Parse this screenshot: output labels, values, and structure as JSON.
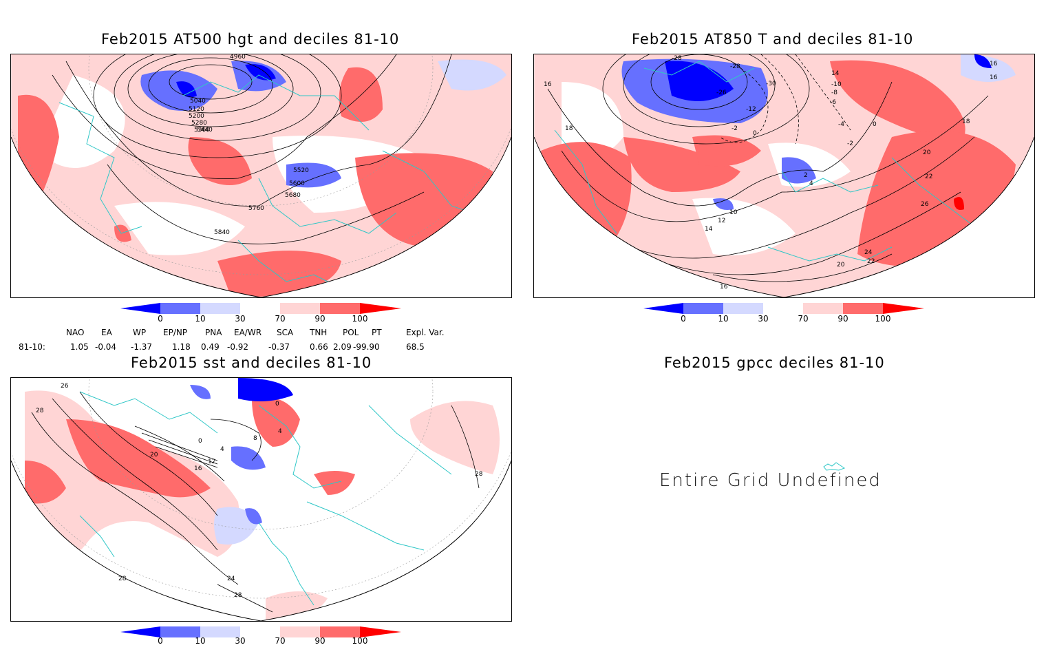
{
  "panels": [
    {
      "id": "p1",
      "title": "Feb2015 AT500 hgt and deciles 81-10",
      "contour_labels": [
        "5040",
        "5120",
        "5200",
        "5280",
        "5360",
        "5440",
        "5520",
        "5600",
        "5680",
        "5760",
        "5840",
        "4960"
      ]
    },
    {
      "id": "p2",
      "title": "Feb2015 AT850 T and deciles 81-10",
      "contour_labels": [
        "-28",
        "-28",
        "-26",
        "-30",
        "-12",
        "-10",
        "-8",
        "-6",
        "-4",
        "-2",
        "-2",
        "0",
        "0",
        "2",
        "4",
        "10",
        "12",
        "14",
        "14",
        "16",
        "16",
        "16",
        "16",
        "18",
        "18",
        "20",
        "20",
        "22",
        "22",
        "24",
        "26"
      ]
    },
    {
      "id": "p3",
      "title": "Feb2015 sst and deciles 81-10",
      "contour_labels": [
        "28",
        "28",
        "28",
        "26",
        "20",
        "16",
        "12",
        "4",
        "8",
        "0",
        "0",
        "4",
        "24",
        "28"
      ]
    },
    {
      "id": "p4",
      "title": "Feb2015 gpcc deciles 81-10",
      "message": "Entire Grid Undefined"
    }
  ],
  "colorbar": {
    "ticks": [
      "0",
      "10",
      "30",
      "70",
      "90",
      "100"
    ],
    "colors": [
      "#0000ff",
      "#6670ff",
      "#d4d9ff",
      "#ffffff",
      "#ffd5d5",
      "#ff6b6b",
      "#ff0000"
    ]
  },
  "indices": {
    "row_label": "81-10:",
    "headers": [
      "NAO",
      "EA",
      "WP",
      "EP/NP",
      "PNA",
      "EA/WR",
      "SCA",
      "TNH",
      "POL",
      "PT",
      "Expl. Var."
    ],
    "values": [
      "1.05",
      "-0.04",
      "-1.37",
      "1.18",
      "0.49",
      "-0.92",
      "-0.37",
      "0.66",
      "2.09",
      "-99.90",
      "68.5"
    ]
  }
}
